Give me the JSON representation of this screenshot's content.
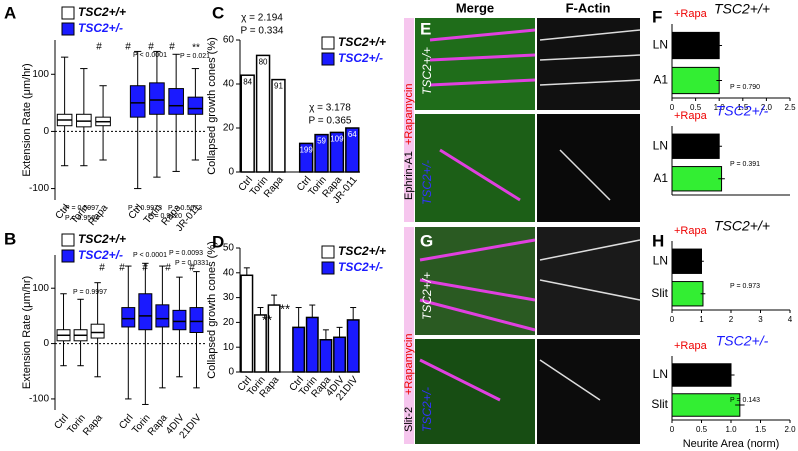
{
  "chart_data": [
    {
      "type": "box",
      "panel": "A",
      "ylabel": "Extension Rate (μm/hr)",
      "ylim": [
        -120,
        160
      ],
      "yticks": [
        -100,
        0,
        100
      ],
      "series": [
        {
          "name": "TSC2+/+",
          "color": "#ffffff",
          "categories": [
            "Ctrl",
            "Torin",
            "Rapa"
          ],
          "boxes": [
            {
              "min": -60,
              "q1": 10,
              "median": 20,
              "q3": 30,
              "max": 130
            },
            {
              "min": -60,
              "q1": 8,
              "median": 18,
              "q3": 30,
              "max": 110
            },
            {
              "min": -50,
              "q1": 10,
              "median": 17,
              "q3": 25,
              "max": 80
            }
          ]
        },
        {
          "name": "TSC2+/-",
          "color": "#1a1aff",
          "categories": [
            "Ctrl",
            "Torin",
            "Rapa",
            "JR-011"
          ],
          "boxes": [
            {
              "min": -100,
              "q1": 25,
              "median": 50,
              "q3": 80,
              "max": 140
            },
            {
              "min": -80,
              "q1": 30,
              "median": 55,
              "q3": 85,
              "max": 140
            },
            {
              "min": -70,
              "q1": 30,
              "median": 45,
              "q3": 75,
              "max": 135
            },
            {
              "min": -50,
              "q1": 30,
              "median": 40,
              "q3": 60,
              "max": 110
            }
          ]
        }
      ],
      "annotations": [
        "#",
        "#",
        "#",
        "#",
        "**",
        "P < 0.0001",
        "P = 0.021",
        "P = 0.5997",
        "P = 0.9564",
        "P = 0.9973",
        "P = 0.9120",
        "P = 0.5673"
      ]
    },
    {
      "type": "box",
      "panel": "B",
      "ylabel": "Extension Rate (μm/hr)",
      "ylim": [
        -120,
        160
      ],
      "yticks": [
        -100,
        0,
        100
      ],
      "series": [
        {
          "name": "TSC2+/+",
          "color": "#ffffff",
          "categories": [
            "Ctrl",
            "Torin",
            "Rapa"
          ],
          "boxes": [
            {
              "min": -40,
              "q1": 5,
              "median": 15,
              "q3": 25,
              "max": 90
            },
            {
              "min": -40,
              "q1": 5,
              "median": 15,
              "q3": 25,
              "max": 80
            },
            {
              "min": -60,
              "q1": 10,
              "median": 20,
              "q3": 35,
              "max": 110
            }
          ]
        },
        {
          "name": "TSC2+/-",
          "color": "#1a1aff",
          "categories": [
            "Ctrl",
            "Torin",
            "Rapa",
            "4DIV",
            "21DIV"
          ],
          "boxes": [
            {
              "min": -100,
              "q1": 30,
              "median": 45,
              "q3": 65,
              "max": 140
            },
            {
              "min": -110,
              "q1": 25,
              "median": 50,
              "q3": 90,
              "max": 145
            },
            {
              "min": -80,
              "q1": 30,
              "median": 45,
              "q3": 70,
              "max": 140
            },
            {
              "min": -60,
              "q1": 25,
              "median": 40,
              "q3": 60,
              "max": 120
            },
            {
              "min": -80,
              "q1": 20,
              "median": 40,
              "q3": 65,
              "max": 130
            }
          ]
        }
      ],
      "annotations": [
        "P = 0.9997",
        "#",
        "#",
        "#",
        "#",
        "#",
        "P < 0.0001",
        "P = 0.0093",
        "P = 0.0331"
      ]
    },
    {
      "type": "bar",
      "panel": "C",
      "ylabel": "Collapsed growth cones (%)",
      "ylim": [
        0,
        60
      ],
      "yticks": [
        0,
        20,
        40,
        60
      ],
      "series": [
        {
          "name": "TSC2+/+",
          "color": "#ffffff",
          "categories": [
            "Ctrl",
            "Torin",
            "Rapa"
          ],
          "values": [
            44,
            53,
            42
          ],
          "n": [
            "84",
            "80",
            "91"
          ]
        },
        {
          "name": "TSC2+/-",
          "color": "#1a1aff",
          "categories": [
            "Ctrl",
            "Torin",
            "Rapa",
            "JR-011"
          ],
          "values": [
            13,
            17,
            18,
            20
          ],
          "n": [
            "199",
            "59",
            "109",
            "64"
          ]
        }
      ],
      "annotations": [
        "χ = 2.194",
        "P = 0.334",
        "χ = 3.178",
        "P = 0.365"
      ]
    },
    {
      "type": "bar",
      "panel": "D",
      "ylabel": "Collapsed growth cones (%)",
      "ylim": [
        0,
        50
      ],
      "yticks": [
        0,
        10,
        20,
        30,
        40,
        50
      ],
      "series": [
        {
          "name": "TSC2+/+",
          "color": "#ffffff",
          "categories": [
            "Ctrl",
            "Torin",
            "Rapa"
          ],
          "values": [
            39,
            23,
            27
          ],
          "errors": [
            3,
            3,
            4
          ]
        },
        {
          "name": "TSC2+/-",
          "color": "#1a1aff",
          "categories": [
            "Ctrl",
            "Torin",
            "Rapa",
            "4DIV",
            "21DIV"
          ],
          "values": [
            18,
            22,
            13,
            14,
            21
          ],
          "errors": [
            8,
            5,
            4,
            4,
            5
          ]
        }
      ],
      "annotations": [
        "**",
        "**"
      ]
    },
    {
      "type": "hbar",
      "panel": "F",
      "title": "TSC2+/+",
      "subtitle": "+Rapa",
      "categories": [
        "LN",
        "A1"
      ],
      "values": [
        1.0,
        1.0
      ],
      "errors": [
        0.06,
        0.06
      ],
      "colors": [
        "#000000",
        "#33ee33"
      ],
      "xlim": [
        0,
        2.5
      ],
      "xticks": [
        0,
        0.5,
        {
          "value": 1,
          "label": "1.0"
        },
        1.5,
        {
          "value": 2,
          "label": "2.0"
        },
        2.5
      ],
      "annotations": [
        "P = 0.790"
      ]
    },
    {
      "type": "hbar",
      "title": "TSC2+/-",
      "subtitle": "+Rapa",
      "categories": [
        "LN",
        "A1"
      ],
      "values": [
        1.0,
        1.05
      ],
      "errors": [
        0.06,
        0.07
      ],
      "colors": [
        "#000000",
        "#33ee33"
      ],
      "xlim": [
        0,
        2.5
      ],
      "annotations": [
        "P = 0.391"
      ]
    },
    {
      "type": "hbar",
      "panel": "H",
      "title": "TSC2+/+",
      "subtitle": "+Rapa",
      "categories": [
        "LN",
        "Slit"
      ],
      "values": [
        1.0,
        1.05
      ],
      "errors": [
        0.08,
        0.08
      ],
      "colors": [
        "#000000",
        "#33ee33"
      ],
      "xlim": [
        0,
        4
      ],
      "xticks": [
        0,
        1,
        2,
        3,
        4
      ],
      "annotations": [
        "P = 0.973"
      ]
    },
    {
      "type": "hbar",
      "title": "TSC2+/-",
      "subtitle": "+Rapa",
      "categories": [
        "LN",
        "Slit"
      ],
      "values": [
        1.0,
        1.15
      ],
      "errors": [
        0.06,
        0.08
      ],
      "colors": [
        "#000000",
        "#33ee33"
      ],
      "xlim": [
        0,
        2
      ],
      "xticks": [
        0,
        0.5,
        {
          "value": 1,
          "label": "1.0"
        },
        1.5,
        {
          "value": 2,
          "label": "2.0"
        }
      ],
      "xlabel": "Neurite Area (norm)",
      "annotations": [
        "P = 0.143"
      ]
    }
  ],
  "images": {
    "panels": [
      "E",
      "G"
    ],
    "merge": "Merge",
    "factin": "F-Actin",
    "e_ligand": "Ephrin-A1",
    "g_ligand": "Slit-2",
    "drug": "+Rapamycin",
    "wt": "TSC2+/+",
    "het": "TSC2+/-"
  }
}
